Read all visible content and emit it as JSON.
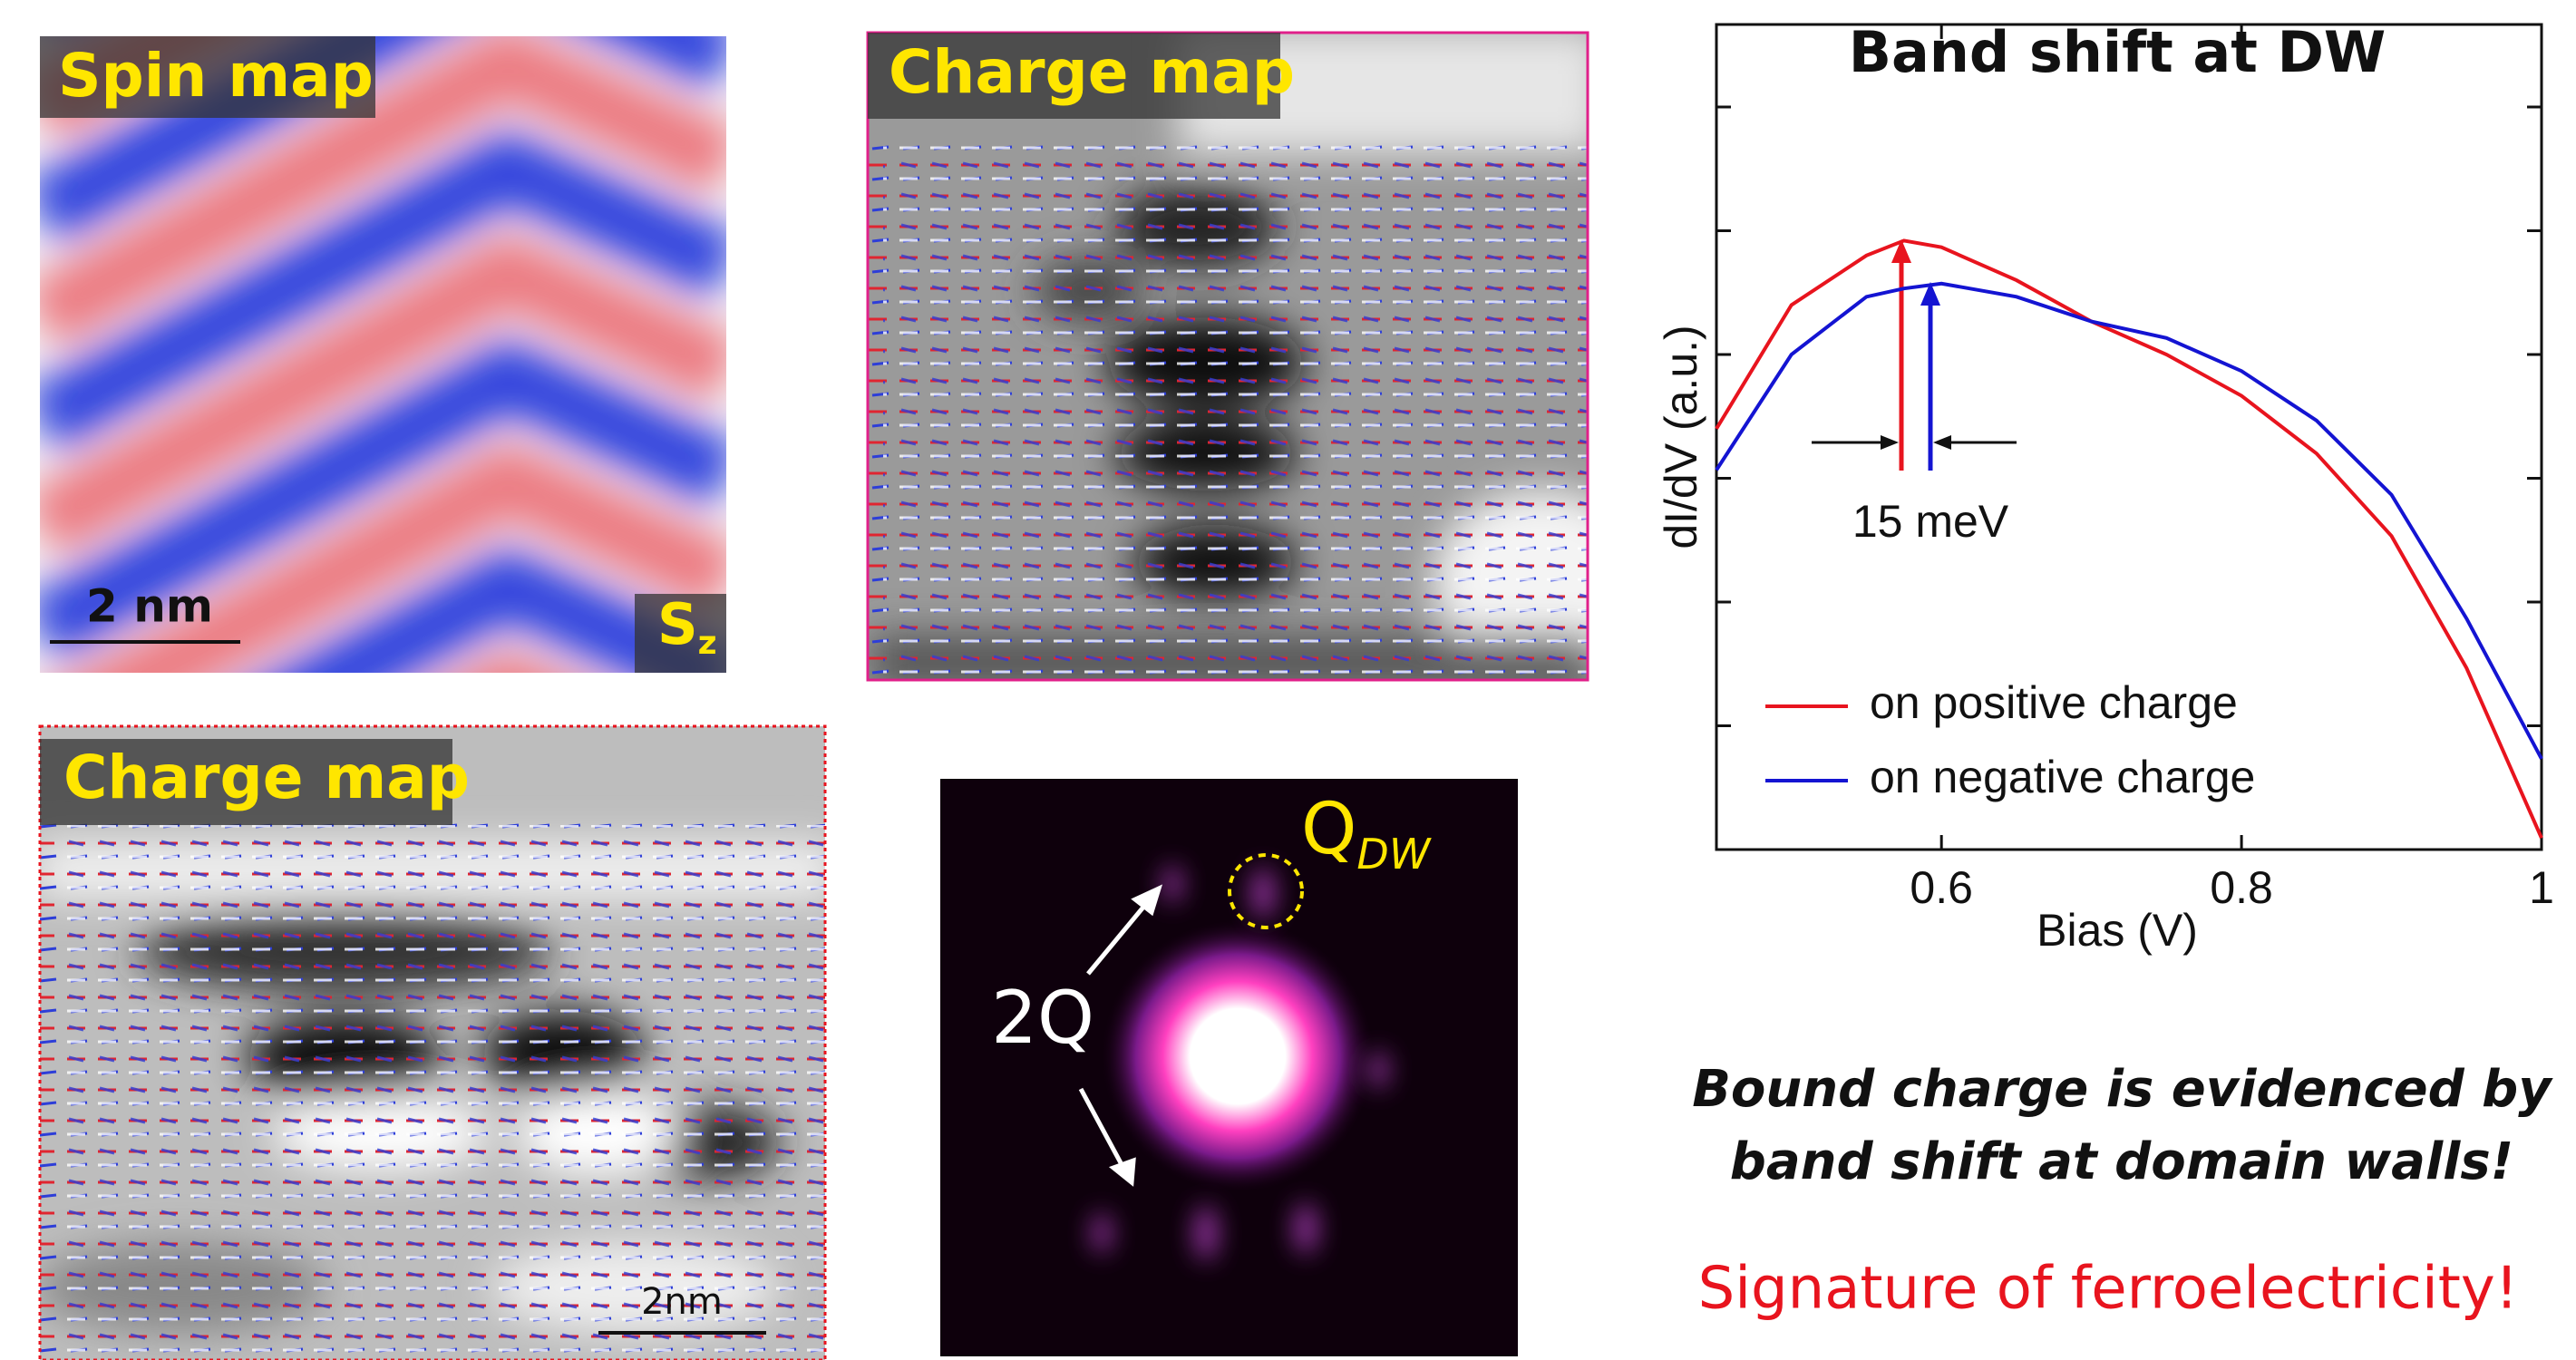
{
  "panels": {
    "spin_map": {
      "label": "Spin map",
      "scale": "2 nm",
      "component": "S",
      "component_sub": "z"
    },
    "charge_map_top": {
      "label": "Charge map"
    },
    "charge_map_bottom": {
      "label": "Charge map",
      "scale": "2nm"
    },
    "fft": {
      "q_label": "Q",
      "q_sub": "DW",
      "harmonic_label": "2Q"
    }
  },
  "chart_data": {
    "type": "line",
    "title": "Band shift at DW",
    "x_label": "Bias (V)",
    "y_label": "dI/dV (a.u.)",
    "annotation": "15 meV",
    "x": [
      0.45,
      0.5,
      0.55,
      0.575,
      0.6,
      0.65,
      0.7,
      0.75,
      0.8,
      0.85,
      0.9,
      0.95,
      1.0
    ],
    "series": [
      {
        "name": "on positive charge",
        "color": "#e8141e",
        "values": [
          0.51,
          0.66,
          0.72,
          0.738,
          0.73,
          0.69,
          0.64,
          0.6,
          0.55,
          0.48,
          0.38,
          0.22,
          0.014
        ]
      },
      {
        "name": "on negative charge",
        "color": "#1414d2",
        "values": [
          0.46,
          0.6,
          0.67,
          0.68,
          0.686,
          0.67,
          0.64,
          0.62,
          0.58,
          0.52,
          0.43,
          0.28,
          0.11
        ]
      }
    ],
    "xlim": [
      0.45,
      1.0
    ],
    "xticks": [
      0.6,
      0.8,
      1
    ],
    "ylim": [
      0,
      1
    ],
    "yticks": [
      0.15,
      0.3,
      0.45,
      0.6,
      0.75,
      0.9
    ]
  },
  "conclusions": {
    "line1": "Bound charge is evidenced by",
    "line2": "band shift at domain walls!",
    "highlight": "Signature of ferroelectricity!"
  }
}
